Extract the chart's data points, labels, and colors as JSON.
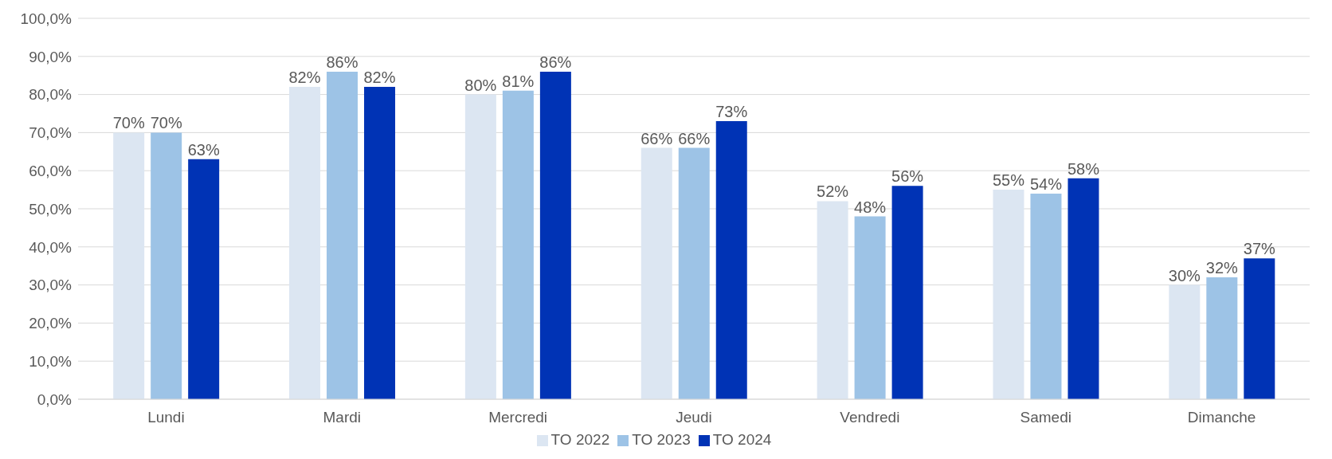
{
  "chart_data": {
    "type": "bar",
    "categories": [
      "Lundi",
      "Mardi",
      "Mercredi",
      "Jeudi",
      "Vendredi",
      "Samedi",
      "Dimanche"
    ],
    "series": [
      {
        "name": "TO 2022",
        "color": "#dce6f2",
        "values": [
          70,
          82,
          80,
          66,
          52,
          55,
          30
        ],
        "value_labels": [
          "70%",
          "82%",
          "80%",
          "66%",
          "52%",
          "55%",
          "30%"
        ]
      },
      {
        "name": "TO 2023",
        "color": "#9dc3e6",
        "values": [
          70,
          86,
          81,
          66,
          48,
          54,
          32
        ],
        "value_labels": [
          "70%",
          "86%",
          "81%",
          "66%",
          "48%",
          "54%",
          "32%"
        ]
      },
      {
        "name": "TO 2024",
        "color": "#0033b5",
        "values": [
          63,
          82,
          86,
          73,
          56,
          58,
          37
        ],
        "value_labels": [
          "63%",
          "82%",
          "86%",
          "73%",
          "56%",
          "58%",
          "37%"
        ]
      }
    ],
    "ylim": [
      0,
      100
    ],
    "yticks": [
      {
        "value": 0,
        "label": "0,0%"
      },
      {
        "value": 10,
        "label": "10,0%"
      },
      {
        "value": 20,
        "label": "20,0%"
      },
      {
        "value": 30,
        "label": "30,0%"
      },
      {
        "value": 40,
        "label": "40,0%"
      },
      {
        "value": 50,
        "label": "50,0%"
      },
      {
        "value": 60,
        "label": "60,0%"
      },
      {
        "value": 70,
        "label": "70,0%"
      },
      {
        "value": 80,
        "label": "80,0%"
      },
      {
        "value": 90,
        "label": "90,0%"
      },
      {
        "value": 100,
        "label": "100,0%"
      }
    ],
    "grid": "y",
    "legend": "bottom"
  }
}
